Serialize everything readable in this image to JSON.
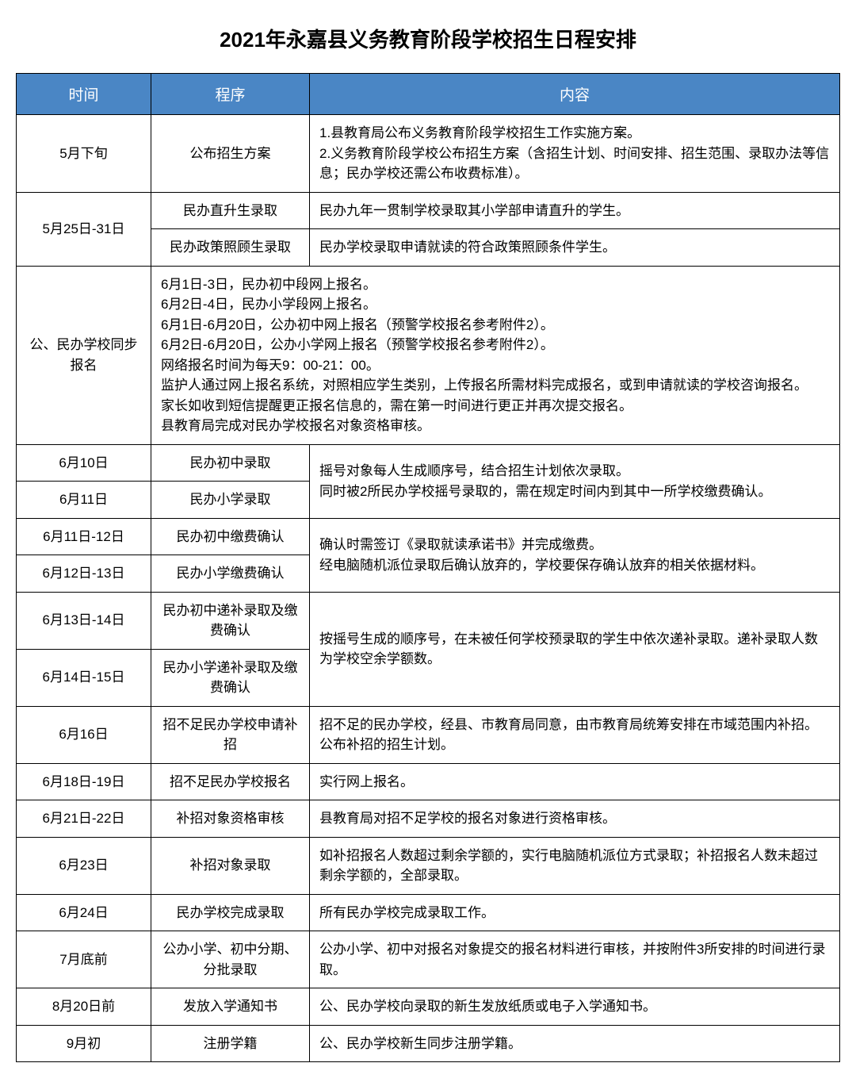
{
  "title": "2021年永嘉县义务教育阶段学校招生日程安排",
  "headers": {
    "time": "时间",
    "procedure": "程序",
    "content": "内容"
  },
  "rows": {
    "r1": {
      "time": "5月下旬",
      "proc": "公布招生方案",
      "content": "1.县教育局公布义务教育阶段学校招生工作实施方案。\n2.义务教育阶段学校公布招生方案（含招生计划、时间安排、招生范围、录取办法等信息；民办学校还需公布收费标准）。"
    },
    "r2": {
      "time": "5月25日-31日",
      "proc": "民办直升生录取",
      "content": "民办九年一贯制学校录取其小学部申请直升的学生。"
    },
    "r3": {
      "proc": "民办政策照顾生录取",
      "content": "民办学校录取申请就读的符合政策照顾条件学生。"
    },
    "r4": {
      "time": "公、民办学校同步报名",
      "content": "6月1日-3日，民办初中段网上报名。\n6月2日-4日，民办小学段网上报名。\n6月1日-6月20日，公办初中网上报名（预警学校报名参考附件2）。\n6月2日-6月20日，公办小学网上报名（预警学校报名参考附件2）。\n网络报名时间为每天9：00-21：00。\n监护人通过网上报名系统，对照相应学生类别，上传报名所需材料完成报名，或到申请就读的学校咨询报名。\n家长如收到短信提醒更正报名信息的，需在第一时间进行更正并再次提交报名。\n县教育局完成对民办学校报名对象资格审核。"
    },
    "r5": {
      "time": "6月10日",
      "proc": "民办初中录取",
      "content": "摇号对象每人生成顺序号，结合招生计划依次录取。\n同时被2所民办学校摇号录取的，需在规定时间内到其中一所学校缴费确认。"
    },
    "r6": {
      "time": "6月11日",
      "proc": "民办小学录取"
    },
    "r7": {
      "time": "6月11日-12日",
      "proc": "民办初中缴费确认",
      "content": "确认时需签订《录取就读承诺书》并完成缴费。\n经电脑随机派位录取后确认放弃的，学校要保存确认放弃的相关依据材料。"
    },
    "r8": {
      "time": "6月12日-13日",
      "proc": "民办小学缴费确认"
    },
    "r9": {
      "time": "6月13日-14日",
      "proc": "民办初中递补录取及缴费确认",
      "content": "按摇号生成的顺序号，在未被任何学校预录取的学生中依次递补录取。递补录取人数为学校空余学额数。"
    },
    "r10": {
      "time": "6月14日-15日",
      "proc": "民办小学递补录取及缴费确认"
    },
    "r11": {
      "time": "6月16日",
      "proc": "招不足民办学校申请补招",
      "content": "招不足的民办学校，经县、市教育局同意，由市教育局统筹安排在市域范围内补招。公布补招的招生计划。"
    },
    "r12": {
      "time": "6月18日-19日",
      "proc": "招不足民办学校报名",
      "content": "实行网上报名。"
    },
    "r13": {
      "time": "6月21日-22日",
      "proc": "补招对象资格审核",
      "content": "县教育局对招不足学校的报名对象进行资格审核。"
    },
    "r14": {
      "time": "6月23日",
      "proc": "补招对象录取",
      "content": "如补招报名人数超过剩余学额的，实行电脑随机派位方式录取；补招报名人数未超过剩余学额的，全部录取。"
    },
    "r15": {
      "time": "6月24日",
      "proc": "民办学校完成录取",
      "content": "所有民办学校完成录取工作。"
    },
    "r16": {
      "time": "7月底前",
      "proc": "公办小学、初中分期、分批录取",
      "content": "公办小学、初中对报名对象提交的报名材料进行审核，并按附件3所安排的时间进行录取。"
    },
    "r17": {
      "time": "8月20日前",
      "proc": "发放入学通知书",
      "content": "公、民办学校向录取的新生发放纸质或电子入学通知书。"
    },
    "r18": {
      "time": "9月初",
      "proc": "注册学籍",
      "content": "公、民办学校新生同步注册学籍。"
    }
  },
  "styling": {
    "header_bg": "#4a86c5",
    "header_text": "#ffffff",
    "border_color": "#000000",
    "text_color": "#000000",
    "background": "#ffffff",
    "title_fontsize": 26,
    "header_fontsize": 19,
    "cell_fontsize": 17
  }
}
